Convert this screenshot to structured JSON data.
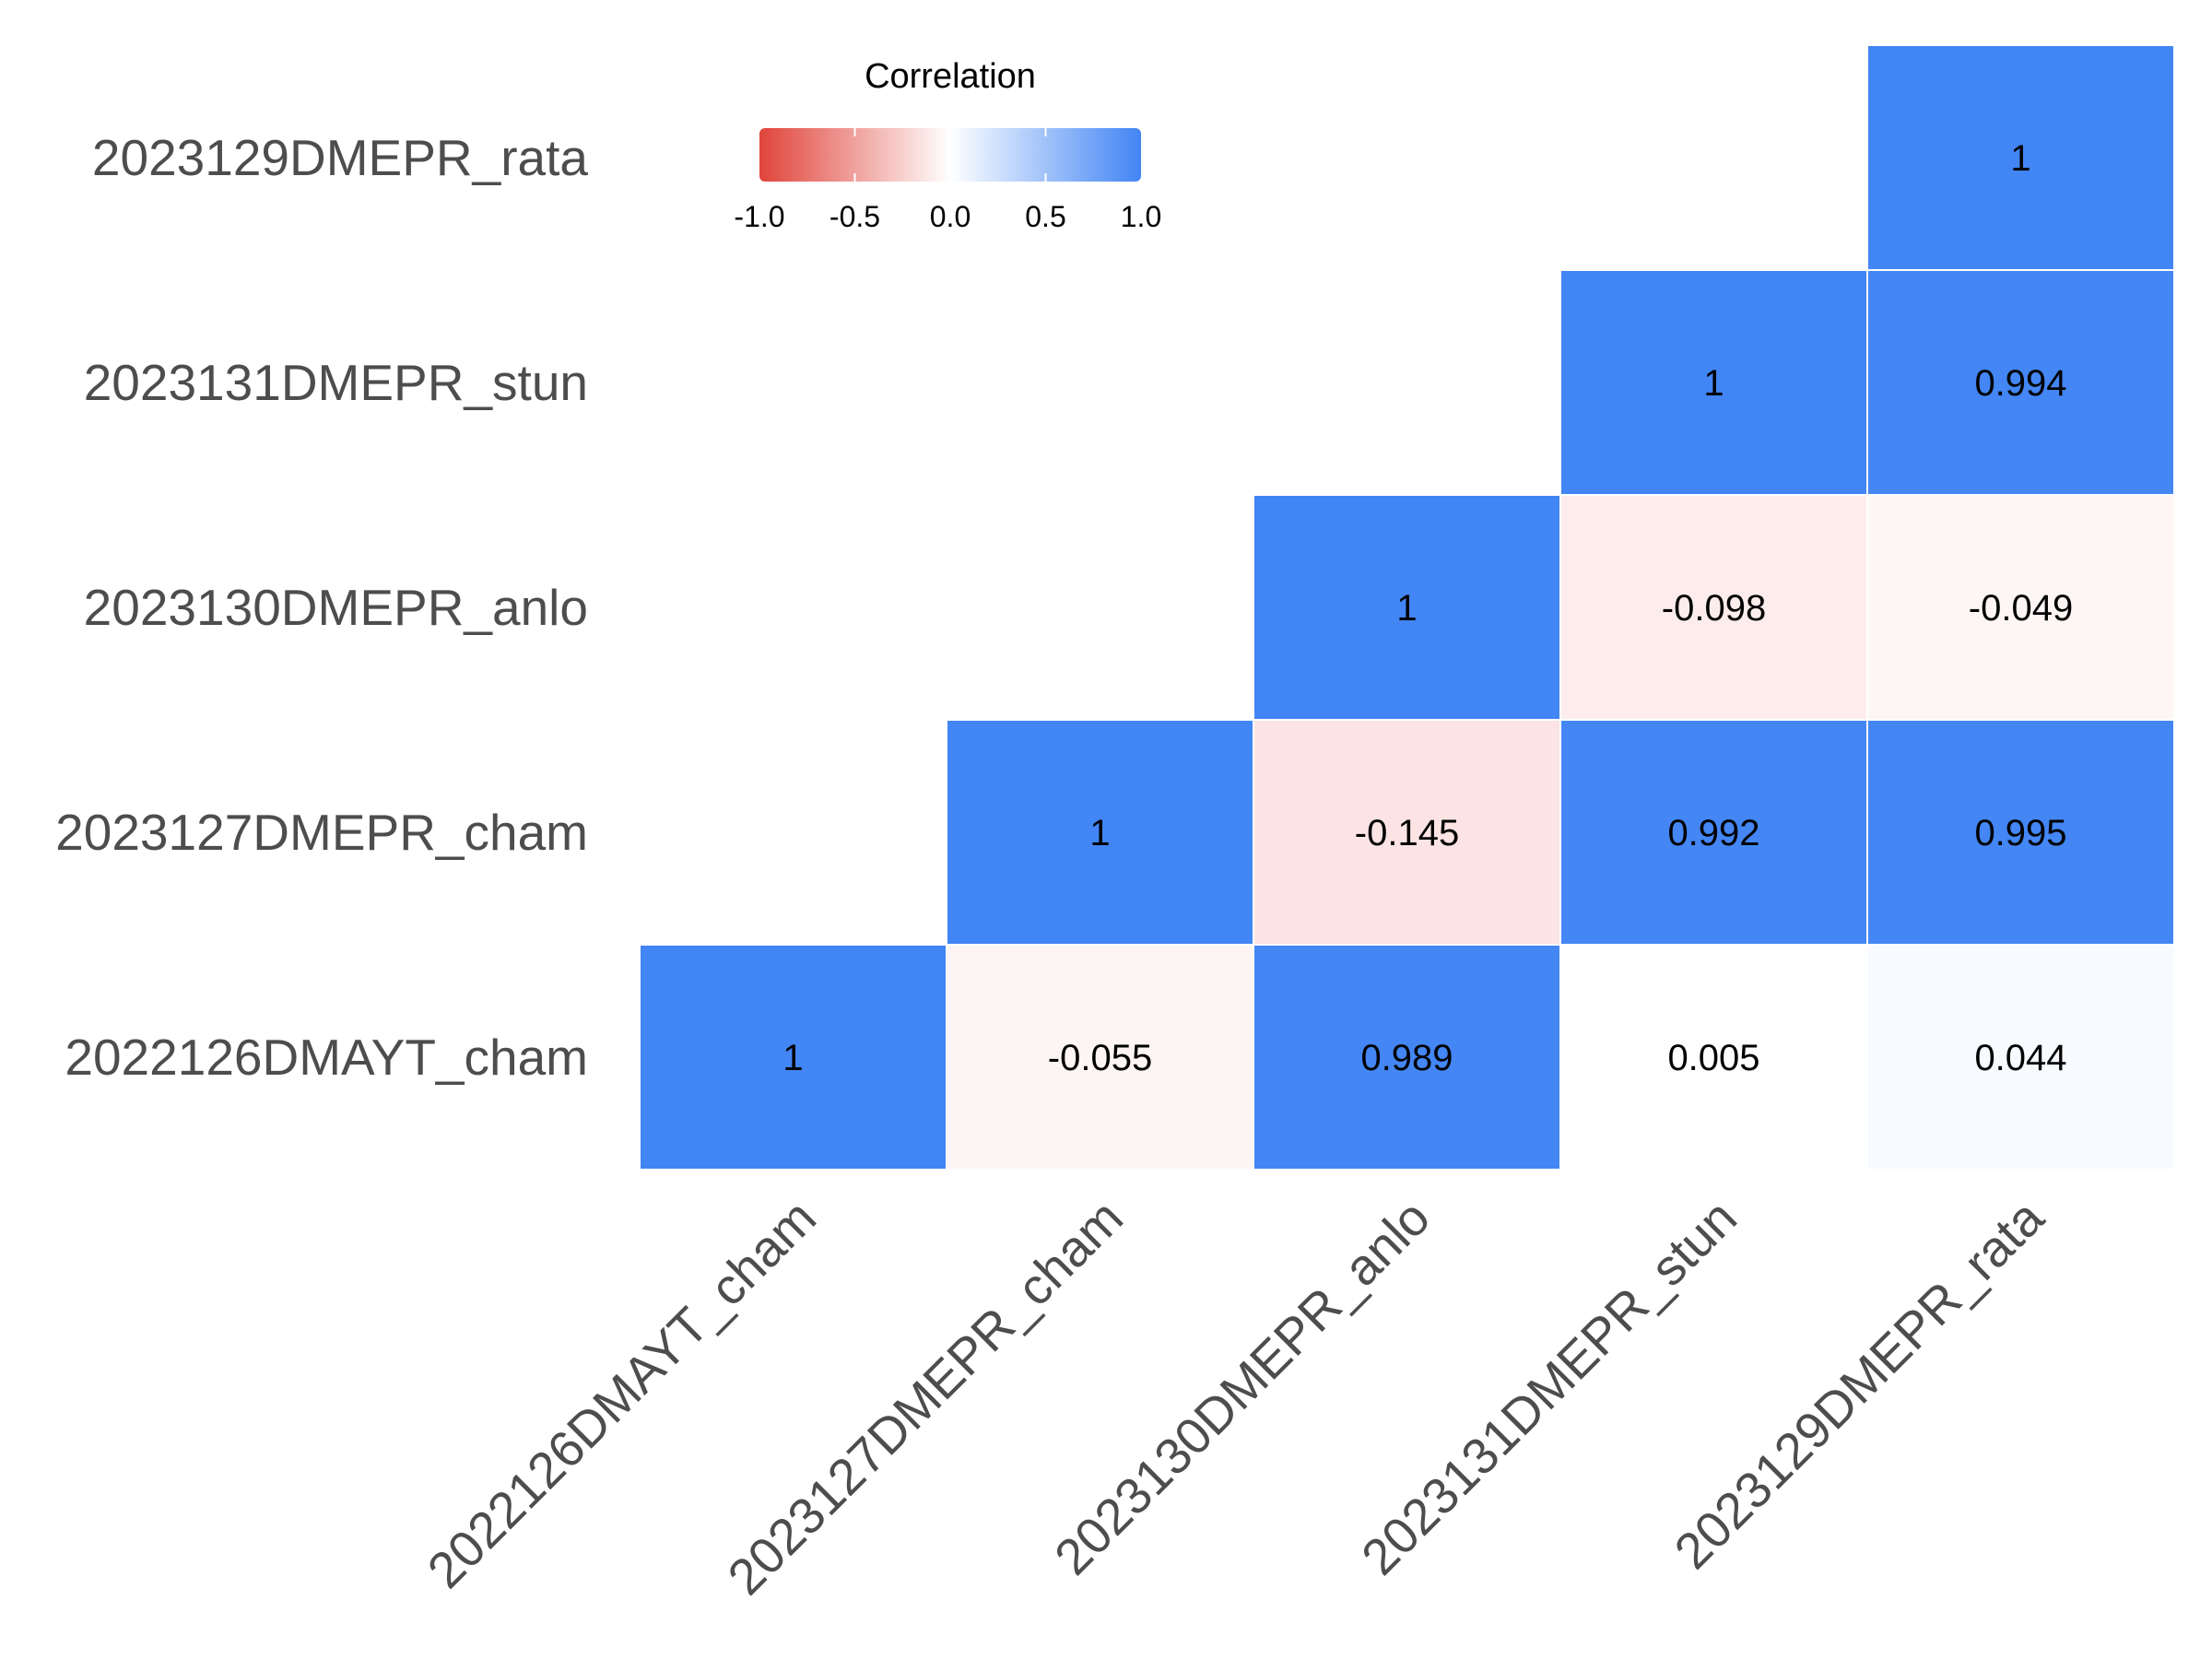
{
  "chart_data": {
    "type": "heatmap",
    "title": "",
    "xlabel": "",
    "ylabel": "",
    "x_categories": [
      "2022126DMAYT_cham",
      "2023127DMEPR_cham",
      "2023130DMEPR_anlo",
      "2023131DMEPR_stun",
      "2023129DMEPR_rata"
    ],
    "y_categories_bottom_to_top": [
      "2022126DMAYT_cham",
      "2023127DMEPR_cham",
      "2023130DMEPR_anlo",
      "2023131DMEPR_stun",
      "2023129DMEPR_rata"
    ],
    "cells": [
      {
        "x": "2022126DMAYT_cham",
        "y": "2022126DMAYT_cham",
        "value": 1,
        "label": "1"
      },
      {
        "x": "2023127DMEPR_cham",
        "y": "2022126DMAYT_cham",
        "value": -0.055,
        "label": "-0.055"
      },
      {
        "x": "2023130DMEPR_anlo",
        "y": "2022126DMAYT_cham",
        "value": 0.989,
        "label": "0.989"
      },
      {
        "x": "2023131DMEPR_stun",
        "y": "2022126DMAYT_cham",
        "value": 0.005,
        "label": "0.005"
      },
      {
        "x": "2023129DMEPR_rata",
        "y": "2022126DMAYT_cham",
        "value": 0.044,
        "label": "0.044"
      },
      {
        "x": "2023127DMEPR_cham",
        "y": "2023127DMEPR_cham",
        "value": 1,
        "label": "1"
      },
      {
        "x": "2023130DMEPR_anlo",
        "y": "2023127DMEPR_cham",
        "value": -0.145,
        "label": "-0.145"
      },
      {
        "x": "2023131DMEPR_stun",
        "y": "2023127DMEPR_cham",
        "value": 0.992,
        "label": "0.992"
      },
      {
        "x": "2023129DMEPR_rata",
        "y": "2023127DMEPR_cham",
        "value": 0.995,
        "label": "0.995"
      },
      {
        "x": "2023130DMEPR_anlo",
        "y": "2023130DMEPR_anlo",
        "value": 1,
        "label": "1"
      },
      {
        "x": "2023131DMEPR_stun",
        "y": "2023130DMEPR_anlo",
        "value": -0.098,
        "label": "-0.098"
      },
      {
        "x": "2023129DMEPR_rata",
        "y": "2023130DMEPR_anlo",
        "value": -0.049,
        "label": "-0.049"
      },
      {
        "x": "2023131DMEPR_stun",
        "y": "2023131DMEPR_stun",
        "value": 1,
        "label": "1"
      },
      {
        "x": "2023129DMEPR_rata",
        "y": "2023131DMEPR_stun",
        "value": 0.994,
        "label": "0.994"
      },
      {
        "x": "2023129DMEPR_rata",
        "y": "2023129DMEPR_rata",
        "value": 1,
        "label": "1"
      }
    ],
    "legend": {
      "title": "Correlation",
      "placement": "top-left",
      "range": [
        -1,
        1
      ],
      "ticks": [
        -1.0,
        -0.5,
        0.0,
        0.5,
        1.0
      ],
      "tick_labels": [
        "-1.0",
        "-0.5",
        "0.0",
        "0.5",
        "1.0"
      ]
    },
    "colors": {
      "low": "#e0443b",
      "mid": "#ffffff",
      "high": "#4285f4"
    },
    "grid": false
  }
}
